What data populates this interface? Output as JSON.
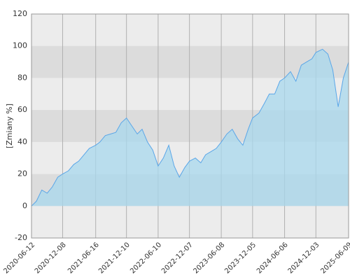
{
  "chart_data": {
    "type": "area",
    "y_label": "[Zmiany %]",
    "x": [
      "2020-06-12",
      "2020-07-10",
      "2020-08-10",
      "2020-09-10",
      "2020-10-10",
      "2020-11-10",
      "2020-12-08",
      "2021-01-10",
      "2021-02-10",
      "2021-03-10",
      "2021-04-10",
      "2021-05-10",
      "2021-06-16",
      "2021-07-10",
      "2021-08-10",
      "2021-09-10",
      "2021-10-10",
      "2021-11-10",
      "2021-12-10",
      "2022-01-10",
      "2022-02-10",
      "2022-03-10",
      "2022-04-10",
      "2022-05-10",
      "2022-06-10",
      "2022-07-10",
      "2022-08-10",
      "2022-09-10",
      "2022-10-10",
      "2022-11-10",
      "2022-12-07",
      "2023-01-10",
      "2023-02-10",
      "2023-03-10",
      "2023-04-10",
      "2023-05-10",
      "2023-06-08",
      "2023-07-10",
      "2023-08-10",
      "2023-09-10",
      "2023-10-10",
      "2023-11-10",
      "2023-12-05",
      "2024-01-10",
      "2024-02-10",
      "2024-03-10",
      "2024-04-10",
      "2024-05-10",
      "2024-06-06",
      "2024-07-10",
      "2024-08-10",
      "2024-09-10",
      "2024-10-10",
      "2024-11-10",
      "2024-12-03",
      "2025-01-10",
      "2025-02-10",
      "2025-03-10",
      "2025-04-10",
      "2025-05-10",
      "2025-06-09"
    ],
    "values": [
      0,
      3,
      10,
      8,
      12,
      18,
      20,
      22,
      26,
      28,
      32,
      36,
      38,
      40,
      44,
      45,
      46,
      52,
      55,
      50,
      45,
      48,
      40,
      35,
      25,
      30,
      38,
      25,
      18,
      24,
      28,
      30,
      27,
      32,
      34,
      36,
      40,
      45,
      48,
      42,
      38,
      48,
      55,
      58,
      64,
      70,
      70,
      78,
      80,
      84,
      78,
      88,
      90,
      92,
      96,
      98,
      95,
      85,
      62,
      80,
      90
    ],
    "color": "#5aa6e8",
    "area_color": "#a8d8ee",
    "xlim": [
      "2020-06-12",
      "2025-06-09"
    ],
    "xticks": [
      "2020-06-12",
      "2020-12-08",
      "2021-06-16",
      "2021-12-10",
      "2022-06-10",
      "2022-12-07",
      "2023-06-08",
      "2023-12-05",
      "2024-06-06",
      "2024-12-03",
      "2025-06-09"
    ],
    "ylim": [
      -20,
      120
    ],
    "yticks": [
      -20,
      0,
      20,
      40,
      60,
      80,
      100,
      120
    ],
    "grid": true
  }
}
